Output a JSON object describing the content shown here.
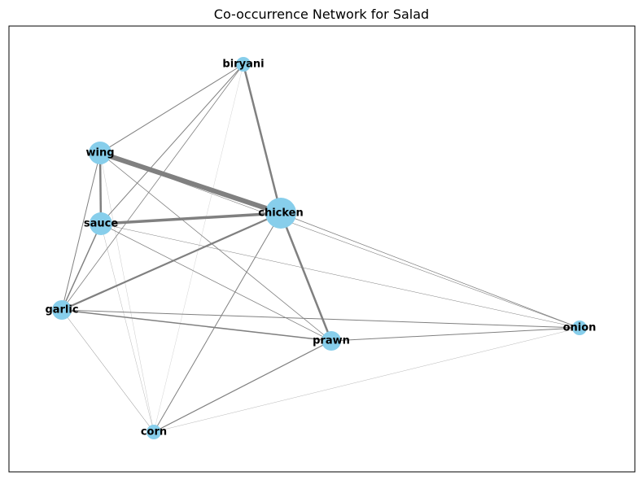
{
  "chart_data": {
    "type": "network",
    "title": "Co-occurrence Network for Salad",
    "node_color": "#87CEEB",
    "edge_color": "#808080",
    "nodes": [
      {
        "id": "biryani",
        "label": "biryani",
        "size": 1
      },
      {
        "id": "wing",
        "label": "wing",
        "size": 3
      },
      {
        "id": "chicken",
        "label": "chicken",
        "size": 5
      },
      {
        "id": "sauce",
        "label": "sauce",
        "size": 3
      },
      {
        "id": "garlic",
        "label": "garlic",
        "size": 2
      },
      {
        "id": "prawn",
        "label": "prawn",
        "size": 2
      },
      {
        "id": "onion",
        "label": "onion",
        "size": 1
      },
      {
        "id": "corn",
        "label": "corn",
        "size": 1
      }
    ],
    "edges": [
      {
        "source": "wing",
        "target": "chicken",
        "weight": 6
      },
      {
        "source": "sauce",
        "target": "chicken",
        "weight": 3.5
      },
      {
        "source": "biryani",
        "target": "chicken",
        "weight": 2.5
      },
      {
        "source": "chicken",
        "target": "prawn",
        "weight": 2.5
      },
      {
        "source": "wing",
        "target": "sauce",
        "weight": 2.5
      },
      {
        "source": "garlic",
        "target": "chicken",
        "weight": 2.2
      },
      {
        "source": "sauce",
        "target": "garlic",
        "weight": 1.5
      },
      {
        "source": "garlic",
        "target": "prawn",
        "weight": 1.5
      },
      {
        "source": "prawn",
        "target": "corn",
        "weight": 1.2
      },
      {
        "source": "biryani",
        "target": "wing",
        "weight": 1
      },
      {
        "source": "biryani",
        "target": "sauce",
        "weight": 1
      },
      {
        "source": "chicken",
        "target": "corn",
        "weight": 1
      },
      {
        "source": "wing",
        "target": "garlic",
        "weight": 1
      },
      {
        "source": "prawn",
        "target": "onion",
        "weight": 1
      },
      {
        "source": "garlic",
        "target": "onion",
        "weight": 1
      },
      {
        "source": "chicken",
        "target": "onion",
        "weight": 0.8
      },
      {
        "source": "wing",
        "target": "prawn",
        "weight": 0.8
      },
      {
        "source": "sauce",
        "target": "prawn",
        "weight": 0.8
      },
      {
        "source": "biryani",
        "target": "garlic",
        "weight": 0.8
      },
      {
        "source": "wing",
        "target": "onion",
        "weight": 0.6
      },
      {
        "source": "sauce",
        "target": "onion",
        "weight": 0.5
      },
      {
        "source": "garlic",
        "target": "corn",
        "weight": 0.5
      },
      {
        "source": "corn",
        "target": "onion",
        "weight": 0.4
      },
      {
        "source": "sauce",
        "target": "corn",
        "weight": 0.4
      },
      {
        "source": "wing",
        "target": "corn",
        "weight": 0.3
      },
      {
        "source": "biryani",
        "target": "corn",
        "weight": 0.25
      },
      {
        "source": "chicken",
        "target": "garlic",
        "weight": 0.3
      }
    ]
  }
}
